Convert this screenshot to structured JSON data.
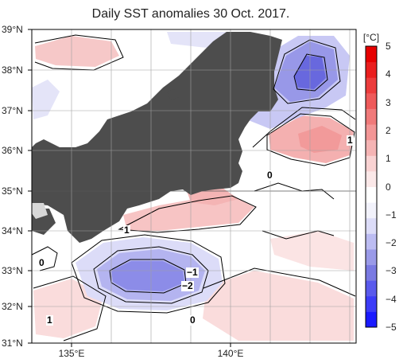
{
  "title": "Daily SST anomalies 30 Oct. 2017.",
  "colorbar": {
    "unit": "[°C]",
    "ticks": [
      "5",
      "4",
      "3",
      "2",
      "1",
      "0",
      "−1",
      "−2",
      "−3",
      "−4",
      "−5"
    ],
    "colors": [
      "#1a1aff",
      "#3c3cf7",
      "#5a5aec",
      "#7a7ae2",
      "#9a9ae8",
      "#bcbcf2",
      "#dcdcf8",
      "#f2f2fb",
      "#ffffff",
      "#fbe8e8",
      "#f9d2d2",
      "#f5b4b4",
      "#f39696",
      "#f07a7a",
      "#ee5a5a",
      "#ec3c3c",
      "#ea1e1e",
      "#e60000"
    ]
  },
  "axes": {
    "lat_labels": [
      "39°N",
      "38°N",
      "37°N",
      "36°N",
      "35°N",
      "34°N",
      "33°N",
      "32°N",
      "31°N"
    ],
    "lon_labels": [
      "135°E",
      "140°E"
    ]
  },
  "contour_labels": [
    "1",
    "0",
    "1",
    "−1",
    "−2",
    "0",
    "0",
    "1"
  ],
  "colors": {
    "land": "#4d4d4d",
    "lake": "#d8d8d8",
    "grid": "#a0a0a0"
  }
}
